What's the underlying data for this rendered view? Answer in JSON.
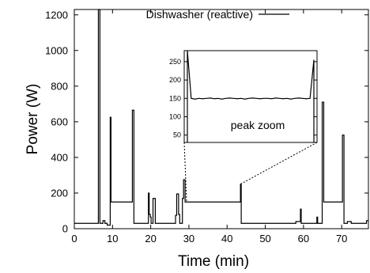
{
  "chart_data": {
    "type": "line",
    "xlabel": "Time (min)",
    "ylabel": "Power (W)",
    "xlim": [
      0,
      77
    ],
    "ylim": [
      0,
      1230
    ],
    "xticks": [
      0,
      10,
      20,
      30,
      40,
      50,
      60,
      70
    ],
    "yticks": [
      0,
      200,
      400,
      600,
      800,
      1000,
      1200
    ],
    "grid": false,
    "legend_position": "top",
    "series": [
      {
        "name": "Dishwasher (reactive)",
        "color": "#000000",
        "x": [
          0,
          6.3,
          6.3,
          6.7,
          6.7,
          7.5,
          7.5,
          8.0,
          8.0,
          8.6,
          8.6,
          9.4,
          9.4,
          9.6,
          9.6,
          10.2,
          10.2,
          15.2,
          15.2,
          15.6,
          15.6,
          19.4,
          19.4,
          19.6,
          19.6,
          19.9,
          19.9,
          20.1,
          20.1,
          20.4,
          20.4,
          20.6,
          20.6,
          21.2,
          21.2,
          21.4,
          21.4,
          23.2,
          23.2,
          26.5,
          26.5,
          26.8,
          26.8,
          27.3,
          27.3,
          27.6,
          27.6,
          28.3,
          28.3,
          28.6,
          28.6,
          29.0,
          29.0,
          29.4,
          29.4,
          43.5,
          43.5,
          43.7,
          43.7,
          58.0,
          58.0,
          59.2,
          59.2,
          59.4,
          59.4,
          62.7,
          62.7,
          63.5,
          63.5,
          63.7,
          63.7,
          64.9,
          64.9,
          65.3,
          65.3,
          70.2,
          70.2,
          70.6,
          70.6,
          71.5,
          71.5,
          72.5,
          72.5,
          76.5,
          76.5,
          77
        ],
        "y": [
          30,
          30,
          1230,
          1230,
          30,
          30,
          45,
          45,
          30,
          30,
          20,
          20,
          625,
          625,
          150,
          150,
          150,
          150,
          665,
          665,
          30,
          30,
          200,
          200,
          80,
          80,
          65,
          65,
          30,
          30,
          30,
          30,
          170,
          170,
          30,
          30,
          30,
          30,
          30,
          30,
          75,
          75,
          195,
          195,
          80,
          80,
          30,
          30,
          170,
          170,
          275,
          275,
          150,
          150,
          150,
          150,
          250,
          250,
          30,
          30,
          40,
          40,
          110,
          110,
          30,
          30,
          30,
          30,
          65,
          65,
          30,
          30,
          710,
          710,
          150,
          150,
          525,
          525,
          30,
          30,
          40,
          40,
          30,
          30,
          45,
          45
        ]
      }
    ],
    "inset": {
      "label": "peak zoom",
      "yticks": [
        50,
        100,
        150,
        200,
        250
      ],
      "ylim": [
        30,
        280
      ],
      "series_y": [
        280,
        150,
        148,
        150,
        149,
        150,
        151,
        149,
        150,
        148,
        150,
        151,
        150,
        149,
        150,
        148,
        150,
        151,
        150,
        149,
        150,
        150,
        149,
        151,
        150,
        149,
        150,
        148,
        150,
        151,
        150,
        149,
        150,
        255
      ]
    }
  }
}
